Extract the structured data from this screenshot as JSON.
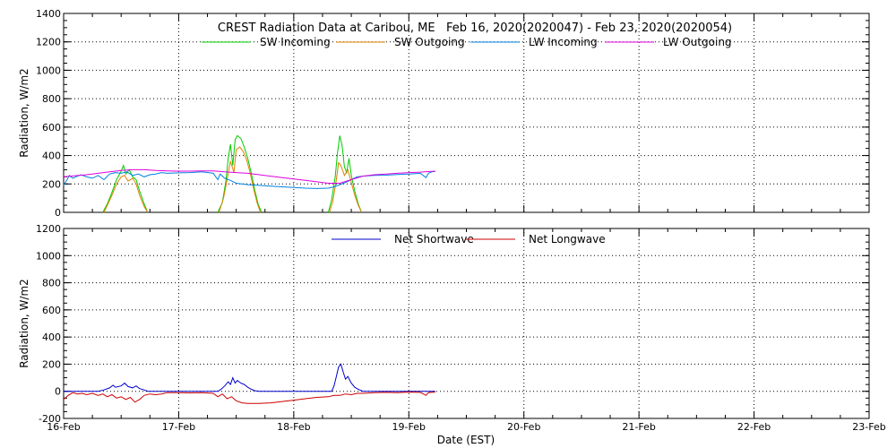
{
  "chart_data": [
    {
      "type": "line",
      "title": "CREST Radiation Data at Caribou, ME   Feb 16, 2020(2020047) - Feb 23, 2020(2020054)",
      "xlabel": "",
      "ylabel": "Radiation, W/m2",
      "x_ticks": [
        "16-Feb",
        "17-Feb",
        "18-Feb",
        "19-Feb",
        "20-Feb",
        "21-Feb",
        "22-Feb",
        "23-Feb"
      ],
      "xlim": [
        16,
        23
      ],
      "ylim": [
        0,
        1400
      ],
      "y_ticks": [
        0,
        200,
        400,
        600,
        800,
        1000,
        1200,
        1400
      ],
      "grid": true,
      "legend_position": "top",
      "series": [
        {
          "name": "SW Incoming",
          "color": "#00cc00",
          "points": [
            [
              16.34,
              0
            ],
            [
              16.38,
              60
            ],
            [
              16.42,
              140
            ],
            [
              16.46,
              230
            ],
            [
              16.5,
              290
            ],
            [
              16.52,
              330
            ],
            [
              16.54,
              270
            ],
            [
              16.57,
              300
            ],
            [
              16.6,
              250
            ],
            [
              16.63,
              230
            ],
            [
              16.66,
              150
            ],
            [
              16.7,
              60
            ],
            [
              16.73,
              0
            ],
            null,
            [
              17.34,
              0
            ],
            [
              17.38,
              70
            ],
            [
              17.41,
              220
            ],
            [
              17.43,
              380
            ],
            [
              17.45,
              480
            ],
            [
              17.47,
              330
            ],
            [
              17.49,
              510
            ],
            [
              17.51,
              540
            ],
            [
              17.54,
              520
            ],
            [
              17.57,
              460
            ],
            [
              17.6,
              380
            ],
            [
              17.63,
              280
            ],
            [
              17.66,
              160
            ],
            [
              17.69,
              60
            ],
            [
              17.72,
              0
            ],
            null,
            [
              18.3,
              0
            ],
            [
              18.33,
              90
            ],
            [
              18.36,
              250
            ],
            [
              18.38,
              420
            ],
            [
              18.4,
              540
            ],
            [
              18.42,
              470
            ],
            [
              18.44,
              320
            ],
            [
              18.46,
              280
            ],
            [
              18.48,
              380
            ],
            [
              18.5,
              260
            ],
            [
              18.53,
              150
            ],
            [
              18.56,
              60
            ],
            [
              18.59,
              0
            ]
          ]
        },
        {
          "name": "SW Outgoing",
          "color": "#e08000",
          "points": [
            [
              16.35,
              0
            ],
            [
              16.38,
              50
            ],
            [
              16.42,
              120
            ],
            [
              16.46,
              200
            ],
            [
              16.5,
              250
            ],
            [
              16.53,
              260
            ],
            [
              16.56,
              220
            ],
            [
              16.6,
              240
            ],
            [
              16.63,
              200
            ],
            [
              16.66,
              120
            ],
            [
              16.7,
              40
            ],
            [
              16.73,
              0
            ],
            null,
            [
              17.35,
              0
            ],
            [
              17.39,
              100
            ],
            [
              17.42,
              230
            ],
            [
              17.45,
              360
            ],
            [
              17.48,
              280
            ],
            [
              17.5,
              440
            ],
            [
              17.53,
              460
            ],
            [
              17.56,
              430
            ],
            [
              17.59,
              370
            ],
            [
              17.62,
              280
            ],
            [
              17.65,
              170
            ],
            [
              17.68,
              70
            ],
            [
              17.71,
              0
            ],
            null,
            [
              18.31,
              0
            ],
            [
              18.34,
              80
            ],
            [
              18.37,
              230
            ],
            [
              18.39,
              350
            ],
            [
              18.41,
              330
            ],
            [
              18.44,
              260
            ],
            [
              18.47,
              300
            ],
            [
              18.5,
              210
            ],
            [
              18.53,
              120
            ],
            [
              18.56,
              50
            ],
            [
              18.59,
              0
            ]
          ]
        },
        {
          "name": "LW Incoming",
          "color": "#0080e0",
          "points": [
            [
              16.0,
              190
            ],
            [
              16.03,
              230
            ],
            [
              16.05,
              260
            ],
            [
              16.08,
              240
            ],
            [
              16.12,
              255
            ],
            [
              16.15,
              265
            ],
            [
              16.2,
              250
            ],
            [
              16.25,
              240
            ],
            [
              16.3,
              260
            ],
            [
              16.35,
              230
            ],
            [
              16.4,
              270
            ],
            [
              16.45,
              280
            ],
            [
              16.5,
              275
            ],
            [
              16.55,
              285
            ],
            [
              16.6,
              260
            ],
            [
              16.65,
              270
            ],
            [
              16.7,
              250
            ],
            [
              16.75,
              265
            ],
            [
              16.8,
              270
            ],
            [
              16.85,
              280
            ],
            [
              16.9,
              275
            ],
            [
              17.0,
              278
            ],
            [
              17.1,
              280
            ],
            [
              17.2,
              285
            ],
            [
              17.3,
              275
            ],
            [
              17.34,
              230
            ],
            [
              17.36,
              270
            ],
            [
              17.4,
              240
            ],
            [
              17.45,
              225
            ],
            [
              17.5,
              205
            ],
            [
              17.6,
              195
            ],
            [
              17.7,
              190
            ],
            [
              17.8,
              185
            ],
            [
              17.9,
              180
            ],
            [
              18.0,
              175
            ],
            [
              18.1,
              170
            ],
            [
              18.2,
              168
            ],
            [
              18.3,
              170
            ],
            [
              18.35,
              180
            ],
            [
              18.4,
              195
            ],
            [
              18.45,
              210
            ],
            [
              18.5,
              230
            ],
            [
              18.55,
              250
            ],
            [
              18.6,
              255
            ],
            [
              18.7,
              260
            ],
            [
              18.8,
              262
            ],
            [
              18.9,
              266
            ],
            [
              19.0,
              270
            ],
            [
              19.1,
              275
            ],
            [
              19.15,
              245
            ],
            [
              19.17,
              275
            ],
            [
              19.2,
              285
            ],
            [
              19.23,
              288
            ]
          ]
        },
        {
          "name": "LW Outgoing",
          "color": "#e000e0",
          "points": [
            [
              16.0,
              250
            ],
            [
              16.1,
              258
            ],
            [
              16.2,
              265
            ],
            [
              16.3,
              275
            ],
            [
              16.4,
              285
            ],
            [
              16.5,
              295
            ],
            [
              16.6,
              300
            ],
            [
              16.7,
              300
            ],
            [
              16.8,
              295
            ],
            [
              16.9,
              292
            ],
            [
              17.0,
              290
            ],
            [
              17.1,
              290
            ],
            [
              17.2,
              292
            ],
            [
              17.3,
              292
            ],
            [
              17.4,
              285
            ],
            [
              17.5,
              280
            ],
            [
              17.6,
              275
            ],
            [
              17.7,
              265
            ],
            [
              17.8,
              255
            ],
            [
              17.9,
              245
            ],
            [
              18.0,
              235
            ],
            [
              18.1,
              225
            ],
            [
              18.2,
              215
            ],
            [
              18.3,
              205
            ],
            [
              18.4,
              205
            ],
            [
              18.5,
              230
            ],
            [
              18.6,
              255
            ],
            [
              18.7,
              265
            ],
            [
              18.8,
              270
            ],
            [
              18.9,
              275
            ],
            [
              19.0,
              280
            ],
            [
              19.1,
              283
            ],
            [
              19.2,
              288
            ],
            [
              19.23,
              290
            ]
          ]
        }
      ]
    },
    {
      "type": "line",
      "title": "",
      "xlabel": "Date (EST)",
      "ylabel": "Radiation, W/m2",
      "x_ticks": [
        "16-Feb",
        "17-Feb",
        "18-Feb",
        "19-Feb",
        "20-Feb",
        "21-Feb",
        "22-Feb",
        "23-Feb"
      ],
      "xlim": [
        16,
        23
      ],
      "ylim": [
        -200,
        1200
      ],
      "y_ticks": [
        -200,
        0,
        200,
        400,
        600,
        800,
        1000,
        1200
      ],
      "grid": true,
      "legend_position": "top",
      "series": [
        {
          "name": "Net Shortwave",
          "color": "#0000cc",
          "points": [
            [
              16.0,
              0
            ],
            [
              16.3,
              0
            ],
            [
              16.35,
              10
            ],
            [
              16.4,
              25
            ],
            [
              16.43,
              45
            ],
            [
              16.45,
              30
            ],
            [
              16.5,
              40
            ],
            [
              16.53,
              60
            ],
            [
              16.56,
              35
            ],
            [
              16.6,
              25
            ],
            [
              16.63,
              40
            ],
            [
              16.66,
              20
            ],
            [
              16.7,
              10
            ],
            [
              16.73,
              0
            ],
            [
              17.0,
              0
            ],
            [
              17.34,
              0
            ],
            [
              17.37,
              15
            ],
            [
              17.4,
              40
            ],
            [
              17.43,
              70
            ],
            [
              17.45,
              50
            ],
            [
              17.47,
              100
            ],
            [
              17.49,
              60
            ],
            [
              17.51,
              80
            ],
            [
              17.54,
              60
            ],
            [
              17.57,
              50
            ],
            [
              17.6,
              30
            ],
            [
              17.63,
              15
            ],
            [
              17.66,
              5
            ],
            [
              17.7,
              0
            ],
            [
              18.0,
              0
            ],
            [
              18.33,
              0
            ],
            [
              18.35,
              40
            ],
            [
              18.37,
              110
            ],
            [
              18.39,
              180
            ],
            [
              18.41,
              200
            ],
            [
              18.43,
              140
            ],
            [
              18.45,
              90
            ],
            [
              18.47,
              110
            ],
            [
              18.5,
              60
            ],
            [
              18.53,
              30
            ],
            [
              18.56,
              15
            ],
            [
              18.6,
              0
            ],
            [
              19.0,
              0
            ],
            [
              19.23,
              0
            ]
          ]
        },
        {
          "name": "Net Longwave",
          "color": "#cc0000",
          "points": [
            [
              16.0,
              -60
            ],
            [
              16.04,
              -30
            ],
            [
              16.08,
              -10
            ],
            [
              16.12,
              -20
            ],
            [
              16.16,
              -15
            ],
            [
              16.2,
              -25
            ],
            [
              16.25,
              -15
            ],
            [
              16.3,
              -30
            ],
            [
              16.34,
              -20
            ],
            [
              16.38,
              -40
            ],
            [
              16.42,
              -25
            ],
            [
              16.46,
              -50
            ],
            [
              16.5,
              -40
            ],
            [
              16.54,
              -60
            ],
            [
              16.58,
              -45
            ],
            [
              16.62,
              -80
            ],
            [
              16.66,
              -60
            ],
            [
              16.7,
              -30
            ],
            [
              16.75,
              -20
            ],
            [
              16.8,
              -25
            ],
            [
              16.85,
              -20
            ],
            [
              16.9,
              -10
            ],
            [
              17.0,
              -10
            ],
            [
              17.1,
              -12
            ],
            [
              17.2,
              -10
            ],
            [
              17.3,
              -15
            ],
            [
              17.34,
              -40
            ],
            [
              17.38,
              -20
            ],
            [
              17.42,
              -55
            ],
            [
              17.46,
              -40
            ],
            [
              17.5,
              -70
            ],
            [
              17.55,
              -85
            ],
            [
              17.6,
              -90
            ],
            [
              17.7,
              -90
            ],
            [
              17.8,
              -85
            ],
            [
              17.9,
              -75
            ],
            [
              18.0,
              -65
            ],
            [
              18.1,
              -55
            ],
            [
              18.2,
              -45
            ],
            [
              18.3,
              -40
            ],
            [
              18.35,
              -30
            ],
            [
              18.4,
              -30
            ],
            [
              18.45,
              -20
            ],
            [
              18.5,
              -25
            ],
            [
              18.55,
              -15
            ],
            [
              18.6,
              -15
            ],
            [
              18.7,
              -10
            ],
            [
              18.8,
              -8
            ],
            [
              18.9,
              -10
            ],
            [
              19.0,
              -6
            ],
            [
              19.1,
              -8
            ],
            [
              19.15,
              -30
            ],
            [
              19.17,
              -10
            ],
            [
              19.23,
              -5
            ]
          ]
        }
      ]
    }
  ]
}
